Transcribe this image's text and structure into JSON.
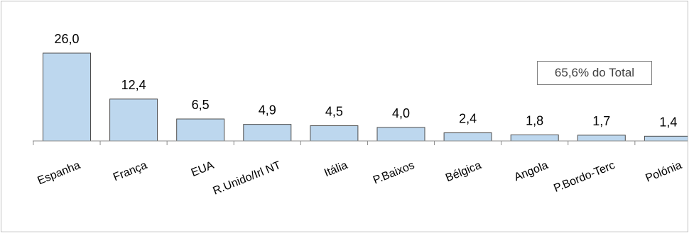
{
  "chart_data": {
    "type": "bar",
    "categories": [
      "Espanha",
      "França",
      "EUA",
      "R.Unido/Irl NT",
      "Itália",
      "P.Baixos",
      "Bélgica",
      "Angola",
      "P.Bordo-Terc",
      "Polónia"
    ],
    "values": [
      26.0,
      12.4,
      6.5,
      4.9,
      4.5,
      4.0,
      2.4,
      1.8,
      1.7,
      1.4
    ],
    "data_labels": [
      "26,0",
      "12,4",
      "6,5",
      "4,9",
      "4,5",
      "4,0",
      "2,4",
      "1,8",
      "1,7",
      "1,4"
    ],
    "title": "",
    "xlabel": "",
    "ylabel": "",
    "ylim": [
      0,
      26
    ],
    "grid": false,
    "legend": "none",
    "annotation": "65,6% do Total",
    "colors": {
      "bar_fill": "#bdd7ee",
      "bar_stroke": "#4d4d4d",
      "axis": "#8c8c8c"
    }
  }
}
